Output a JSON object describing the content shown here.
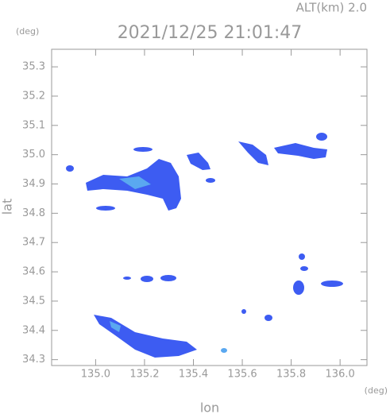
{
  "header": {
    "altitude": "ALT(km) 2.0",
    "timestamp": "2021/12/25 21:01:47"
  },
  "axes": {
    "y_unit": "(deg)",
    "x_unit": "(deg)",
    "y_label": "lat",
    "x_label": "lon",
    "xlim": [
      134.82,
      136.11
    ],
    "ylim": [
      34.28,
      35.36
    ],
    "xticks": [
      {
        "value": 135.0,
        "label": "135.0"
      },
      135.2,
      135.4,
      135.6,
      135.8,
      {
        "value": 136.0,
        "label": "136.0"
      }
    ],
    "yticks": [
      34.3,
      34.4,
      34.5,
      34.6,
      34.7,
      34.8,
      34.9,
      {
        "value": 35.0,
        "label": "35.0"
      },
      35.1,
      35.2,
      35.3
    ]
  }
}
